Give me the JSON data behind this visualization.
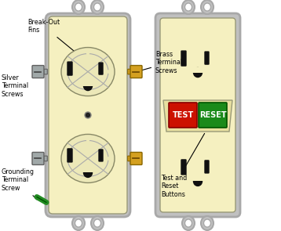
{
  "bg_color": "#ffffff",
  "cream": "#f5f0c0",
  "cream_dark": "#e8e0a0",
  "cream_mid": "#ece8b8",
  "plate_gray": "#a8a8a8",
  "plate_gray2": "#c0c0c0",
  "screw_silver": "#a0a8a8",
  "screw_brass": "#d4a020",
  "screw_green": "#228b22",
  "slot_black": "#101010",
  "black": "#000000",
  "red_btn": "#cc1100",
  "green_btn": "#1a8a1a",
  "white": "#ffffff",
  "label_breakout": "Break-Out\nFins",
  "label_silver": "Silver\nTerminal\nScrews",
  "label_brass": "Brass\nTerminal\nScrews",
  "label_grounding": "Grounding\nTerminal\nScrew",
  "label_test_reset": "Test and\nReset\nButtons"
}
